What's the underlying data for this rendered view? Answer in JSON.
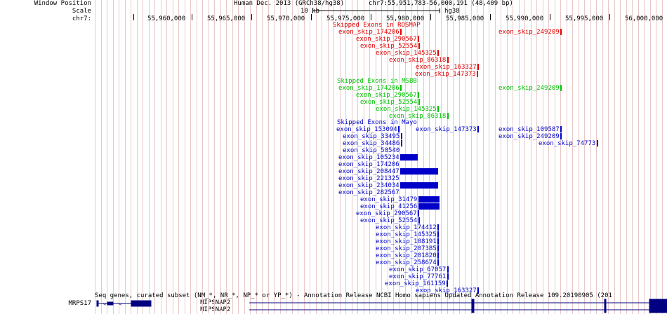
{
  "side_labels": {
    "window_position": "Window Position",
    "scale": "Scale",
    "chrom": "chr7:",
    "mrps17": "MRPS17",
    "nipsnap2_a": "NIPSNAP2",
    "nipsnap2_b": "NIPSNAP2"
  },
  "header": {
    "assembly": "Human Dec. 2013 (GRCh38/hg38)",
    "position": "chr7:55,951,783-56,000,191 (48,409 bp)",
    "scale_text": "10 kb",
    "scale_db": "hg38"
  },
  "ruler": [
    "55,960,000",
    "55,965,000",
    "55,970,000",
    "55,975,000",
    "55,980,000",
    "55,985,000",
    "55,990,000",
    "55,995,000",
    "56,000,000"
  ],
  "rosmap": {
    "title": "Skipped Exons in ROSMAP",
    "items": [
      "exon_skip_174206",
      "exon_skip_249209",
      "exon_skip_290567",
      "exon_skip_52554",
      "exon_skip_145325",
      "exon_skip_86318",
      "exon_skip_163327",
      "exon_skip_147373"
    ]
  },
  "msbb": {
    "title": "Skipped Exons in MSBB",
    "items": [
      "exon_skip_174206",
      "exon_skip_249209",
      "exon_skip_290567",
      "exon_skip_52554",
      "exon_skip_145325",
      "exon_skip_86318"
    ]
  },
  "mayo": {
    "title": "Skipped Exons in Mayo",
    "items": [
      "exon_skip_153094",
      "exon_skip_147373",
      "exon_skip_109587",
      "exon_skip_33495",
      "exon_skip_249209",
      "exon_skip_34486",
      "exon_skip_74773",
      "exon_skip_50540",
      "exon_skip_105234",
      "exon_skip_174206",
      "exon_skip_208447",
      "exon_skip_221325",
      "exon_skip_234034",
      "exon_skip_282567",
      "exon_skip_31479",
      "exon_skip_41256",
      "exon_skip_290567",
      "exon_skip_52554",
      "exon_skip_174412",
      "exon_skip_145325",
      "exon_skip_188191",
      "exon_skip_207385",
      "exon_skip_201820",
      "exon_skip_258674",
      "exon_skip_67057",
      "exon_skip_77761",
      "exon_skip_161159",
      "exon_skip_163327"
    ]
  },
  "refseq_title": "Seq genes, curated subset (NM_*, NR_*, NP_* or YP_*) - Annotation Release NCBI Homo sapiens Updated Annotation Release 109.20190905 (201",
  "colors": {
    "rosmap": "#e00000",
    "msbb": "#00c000",
    "mayo": "#0000c8",
    "gene": "#000080",
    "gridline": "#e8c8c8"
  }
}
